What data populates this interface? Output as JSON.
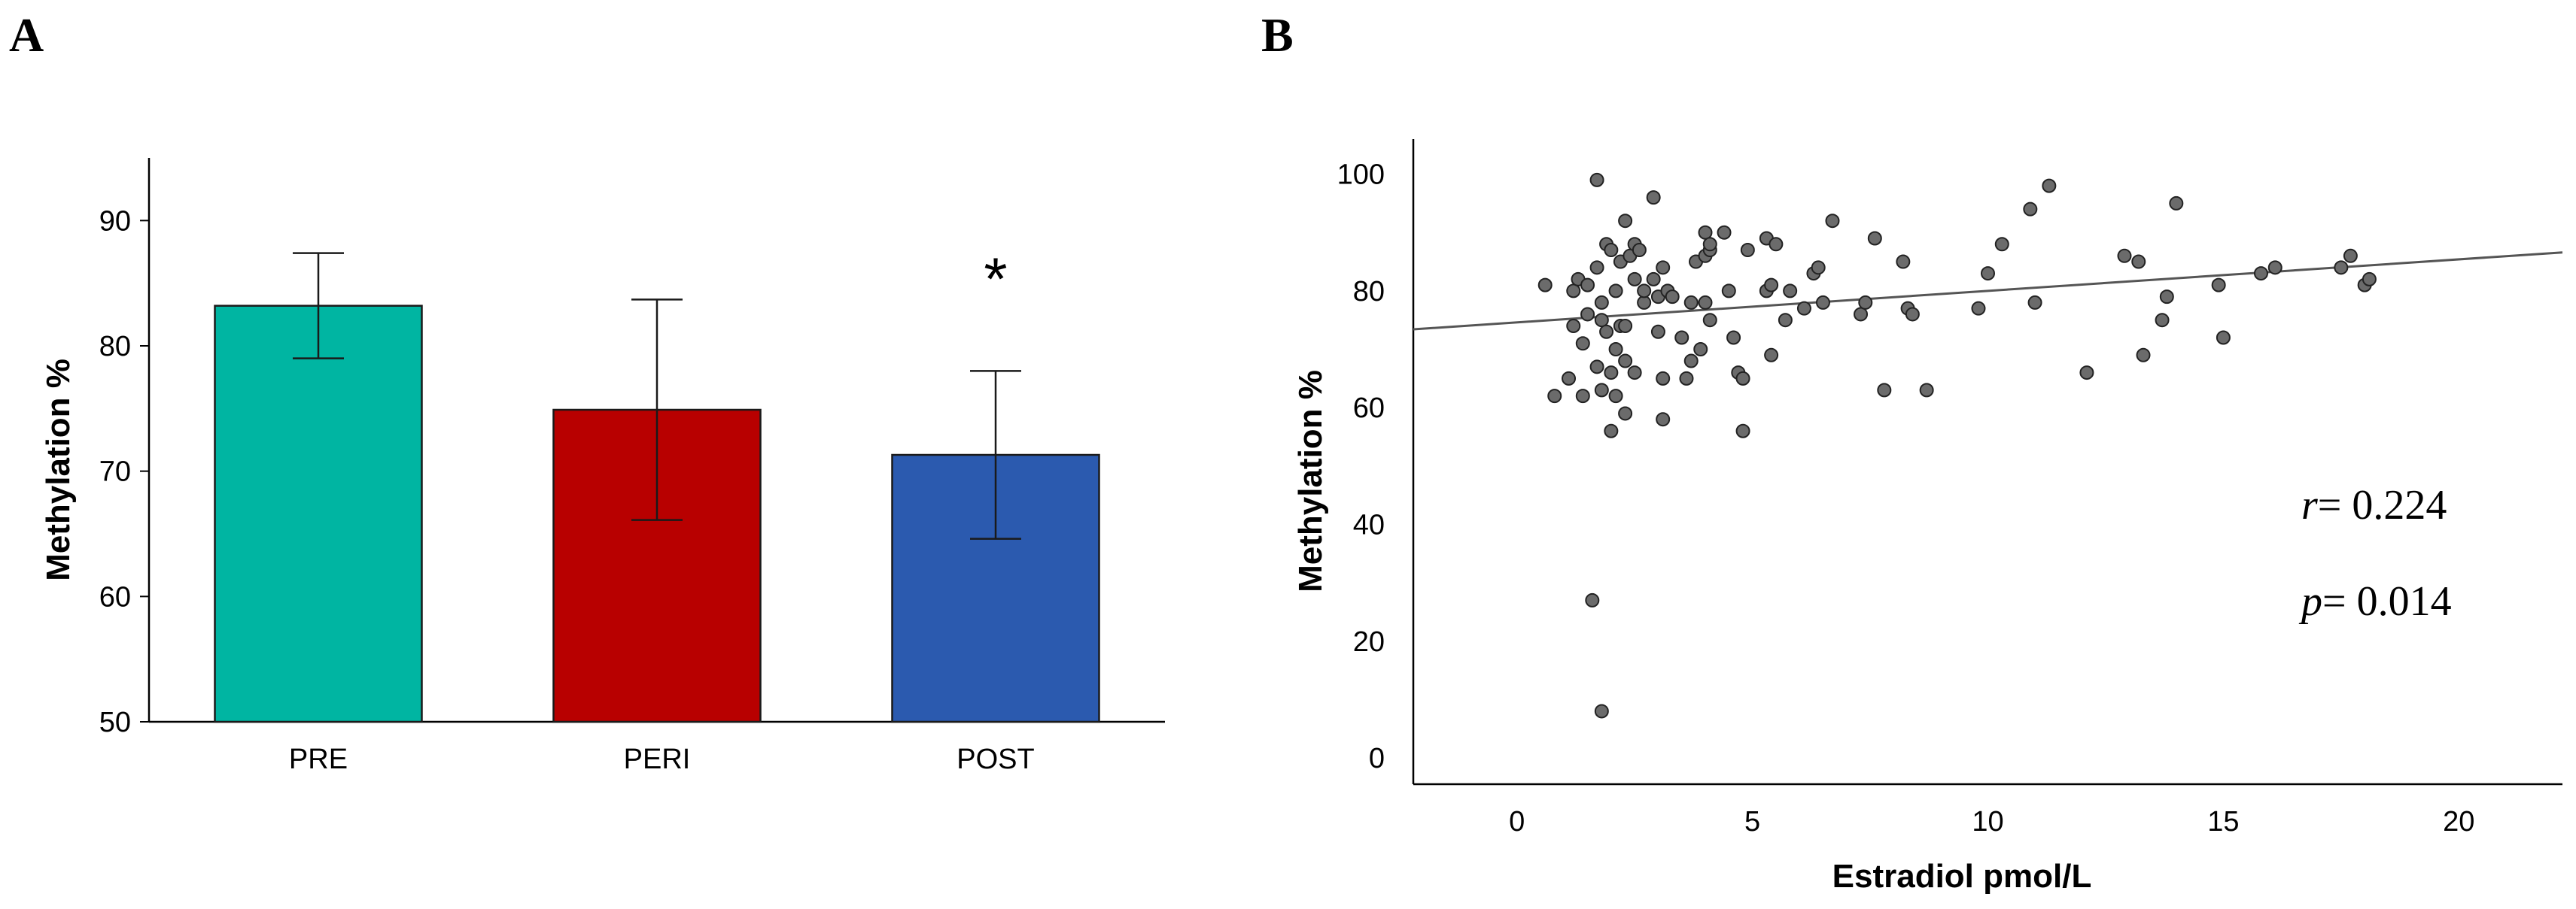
{
  "chart_data": [
    {
      "panel": "A",
      "type": "bar",
      "categories": [
        "PRE",
        "PERI",
        "POST"
      ],
      "values": [
        83.2,
        74.9,
        71.3
      ],
      "errors": [
        [
          79.0,
          87.4
        ],
        [
          66.1,
          83.7
        ],
        [
          64.6,
          78.0
        ]
      ],
      "colors": [
        "#00b5a2",
        "#b80000",
        "#2b5aaf"
      ],
      "ylabel": "Methylation %",
      "xlabel": "",
      "ylim": [
        50,
        95
      ],
      "yticks": [
        50,
        60,
        70,
        80,
        90
      ],
      "significance": [
        {
          "category": "POST",
          "label": "*"
        }
      ]
    },
    {
      "panel": "B",
      "type": "scatter",
      "xlabel": "Estradiol pmol/L",
      "ylabel": "Methylation %",
      "xlim": [
        -2.2,
        22.2
      ],
      "ylim": [
        -4.5,
        106
      ],
      "xticks": [
        0,
        5,
        10,
        15,
        20
      ],
      "yticks": [
        0,
        20,
        40,
        60,
        80,
        100
      ],
      "point_color": "#6b6b6b",
      "fit_line": {
        "intercept": 74.6,
        "slope": 0.54
      },
      "annotations": [
        {
          "var": "r",
          "text": "= 0.224"
        },
        {
          "var": "p",
          "text": "= 0.014"
        }
      ],
      "points": [
        [
          0.6,
          81
        ],
        [
          0.8,
          62
        ],
        [
          1.1,
          65
        ],
        [
          1.2,
          74
        ],
        [
          1.2,
          80
        ],
        [
          1.3,
          82
        ],
        [
          1.4,
          62
        ],
        [
          1.4,
          71
        ],
        [
          1.5,
          76
        ],
        [
          1.5,
          81
        ],
        [
          1.6,
          27
        ],
        [
          1.7,
          67
        ],
        [
          1.7,
          99
        ],
        [
          1.7,
          84
        ],
        [
          1.8,
          78
        ],
        [
          1.8,
          75
        ],
        [
          1.8,
          8
        ],
        [
          1.8,
          63
        ],
        [
          1.9,
          88
        ],
        [
          1.9,
          73
        ],
        [
          2.0,
          66
        ],
        [
          2.0,
          87
        ],
        [
          2.0,
          56
        ],
        [
          2.1,
          62
        ],
        [
          2.1,
          80
        ],
        [
          2.1,
          70
        ],
        [
          2.2,
          74
        ],
        [
          2.2,
          85
        ],
        [
          2.3,
          68
        ],
        [
          2.3,
          92
        ],
        [
          2.3,
          59
        ],
        [
          2.3,
          74
        ],
        [
          2.4,
          86
        ],
        [
          2.5,
          88
        ],
        [
          2.5,
          82
        ],
        [
          2.5,
          66
        ],
        [
          2.6,
          87
        ],
        [
          2.7,
          78
        ],
        [
          2.7,
          80
        ],
        [
          2.9,
          82
        ],
        [
          2.9,
          96
        ],
        [
          3.0,
          73
        ],
        [
          3.0,
          79
        ],
        [
          3.1,
          58
        ],
        [
          3.1,
          65
        ],
        [
          3.1,
          84
        ],
        [
          3.2,
          80
        ],
        [
          3.3,
          79
        ],
        [
          3.5,
          72
        ],
        [
          3.6,
          65
        ],
        [
          3.7,
          68
        ],
        [
          3.7,
          78
        ],
        [
          3.8,
          85
        ],
        [
          3.9,
          70
        ],
        [
          4.0,
          90
        ],
        [
          4.0,
          78
        ],
        [
          4.0,
          86
        ],
        [
          4.1,
          87
        ],
        [
          4.1,
          88
        ],
        [
          4.1,
          75
        ],
        [
          4.4,
          90
        ],
        [
          4.5,
          80
        ],
        [
          4.6,
          72
        ],
        [
          4.7,
          66
        ],
        [
          4.8,
          65
        ],
        [
          4.8,
          56
        ],
        [
          4.9,
          87
        ],
        [
          5.3,
          80
        ],
        [
          5.3,
          89
        ],
        [
          5.4,
          69
        ],
        [
          5.4,
          81
        ],
        [
          5.5,
          88
        ],
        [
          5.7,
          75
        ],
        [
          5.8,
          80
        ],
        [
          6.1,
          77
        ],
        [
          6.3,
          83
        ],
        [
          6.4,
          84
        ],
        [
          6.5,
          78
        ],
        [
          6.7,
          92
        ],
        [
          7.3,
          76
        ],
        [
          7.4,
          78
        ],
        [
          7.6,
          89
        ],
        [
          7.8,
          63
        ],
        [
          8.2,
          85
        ],
        [
          8.3,
          77
        ],
        [
          8.4,
          76
        ],
        [
          8.7,
          63
        ],
        [
          9.8,
          77
        ],
        [
          10.0,
          83
        ],
        [
          10.3,
          88
        ],
        [
          10.9,
          94
        ],
        [
          11.0,
          78
        ],
        [
          11.3,
          98
        ],
        [
          12.1,
          66
        ],
        [
          12.9,
          86
        ],
        [
          13.2,
          85
        ],
        [
          13.3,
          69
        ],
        [
          13.7,
          75
        ],
        [
          13.8,
          79
        ],
        [
          14.0,
          95
        ],
        [
          14.9,
          81
        ],
        [
          15.0,
          72
        ],
        [
          15.8,
          83
        ],
        [
          16.1,
          84
        ],
        [
          17.5,
          84
        ],
        [
          17.7,
          86
        ],
        [
          18.0,
          81
        ],
        [
          18.1,
          82
        ]
      ]
    }
  ]
}
